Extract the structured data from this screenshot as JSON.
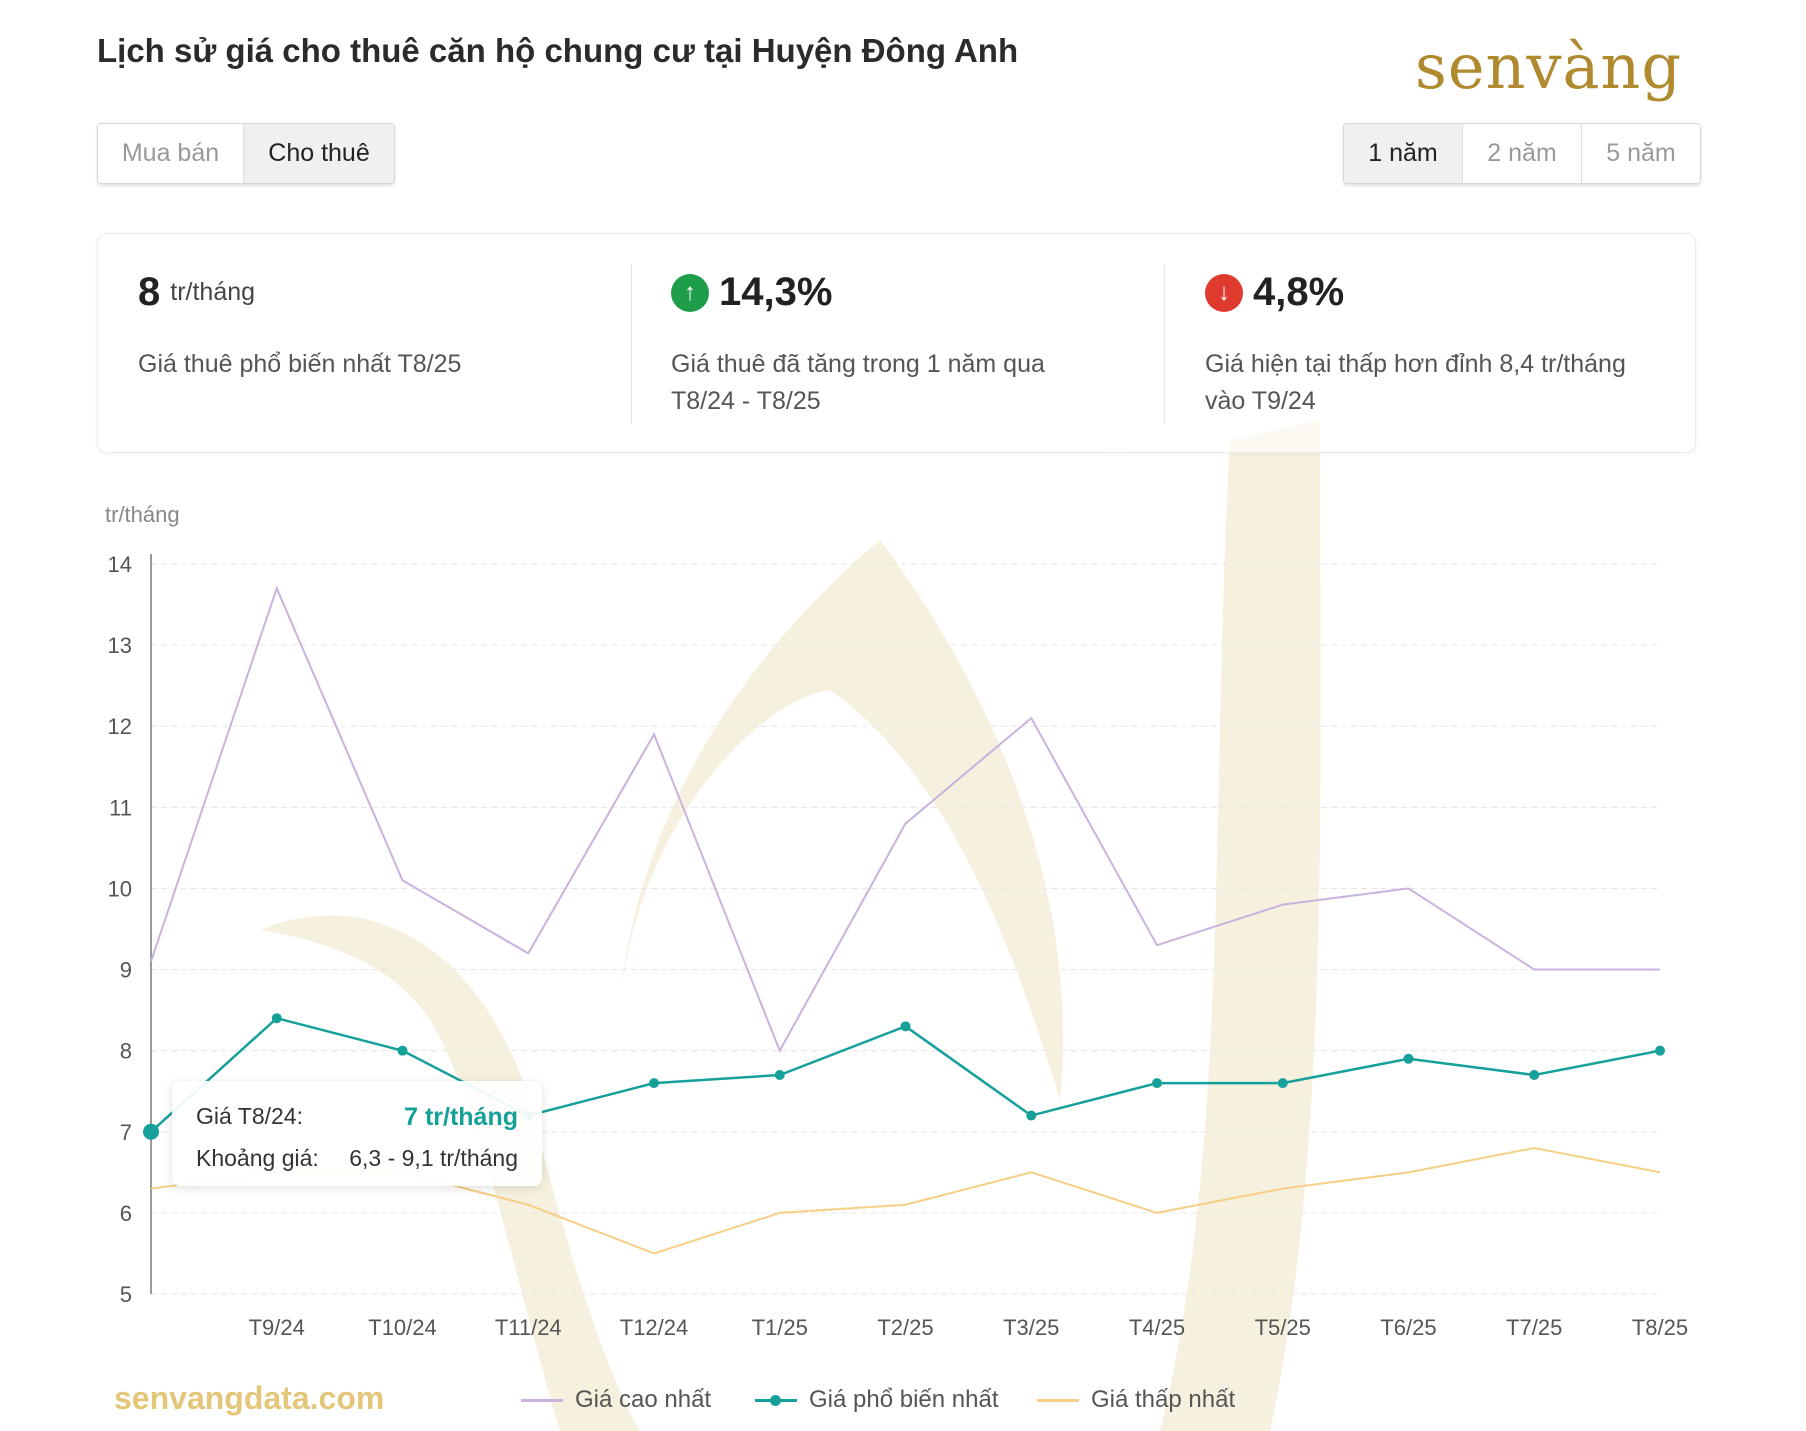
{
  "header": {
    "title": "Lịch sử giá cho thuê căn hộ chung cư tại Huyện Đông Anh",
    "logo_text": "senvàng"
  },
  "type_tabs": [
    {
      "label": "Mua bán",
      "active": false
    },
    {
      "label": "Cho thuê",
      "active": true
    }
  ],
  "range_tabs": [
    {
      "label": "1 năm",
      "active": true
    },
    {
      "label": "2 năm",
      "active": false
    },
    {
      "label": "5 năm",
      "active": false
    }
  ],
  "stats": [
    {
      "value": "8",
      "unit": "tr/tháng",
      "desc1": "Giá thuê phổ biến nhất T8/25",
      "desc2": ""
    },
    {
      "value": "14,3%",
      "icon": "arrow-up-icon",
      "color": "#1e9e4a",
      "desc1": "Giá thuê đã tăng trong 1 năm qua",
      "desc2": "T8/24 - T8/25"
    },
    {
      "value": "4,8%",
      "icon": "arrow-down-icon",
      "color": "#e03a2f",
      "desc1": "Giá hiện tại thấp hơn đỉnh 8,4 tr/tháng",
      "desc2": "vào T9/24"
    }
  ],
  "tooltip": {
    "label1": "Giá T8/24:",
    "value1": "7 tr/tháng",
    "label2": "Khoảng giá:",
    "value2": "6,3 - 9,1 tr/tháng"
  },
  "footer": {
    "site": "senvangdata.com"
  },
  "chart_data": {
    "type": "line",
    "ylabel": "tr/tháng",
    "ylim": [
      5,
      14
    ],
    "yticks": [
      5,
      6,
      7,
      8,
      9,
      10,
      11,
      12,
      13,
      14
    ],
    "x": [
      "T8/24",
      "T9/24",
      "T10/24",
      "T11/24",
      "T12/24",
      "T1/25",
      "T2/25",
      "T3/25",
      "T4/25",
      "T5/25",
      "T6/25",
      "T7/25",
      "T8/25"
    ],
    "xtick_labels": [
      "T9/24",
      "T10/24",
      "T11/24",
      "T12/24",
      "T1/25",
      "T2/25",
      "T3/25",
      "T4/25",
      "T5/25",
      "T6/25",
      "T7/25",
      "T8/25"
    ],
    "grid": true,
    "legend_position": "bottom",
    "series": [
      {
        "name": "Giá cao nhất",
        "color": "#c9b3dc",
        "markers": false,
        "values": [
          9.1,
          13.7,
          10.1,
          9.2,
          11.9,
          8.0,
          10.8,
          12.1,
          9.3,
          9.8,
          10.0,
          9.0,
          9.0
        ]
      },
      {
        "name": "Giá phổ biến nhất",
        "color": "#16a09a",
        "markers": true,
        "values": [
          7.0,
          8.4,
          8.0,
          7.2,
          7.6,
          7.7,
          8.3,
          7.2,
          7.6,
          7.6,
          7.9,
          7.7,
          8.0
        ]
      },
      {
        "name": "Giá thấp nhất",
        "color": "#f5cf85",
        "markers": false,
        "values": [
          6.3,
          6.5,
          6.5,
          6.1,
          5.5,
          6.0,
          6.1,
          6.5,
          6.0,
          6.3,
          6.5,
          6.8,
          6.5
        ]
      }
    ]
  }
}
